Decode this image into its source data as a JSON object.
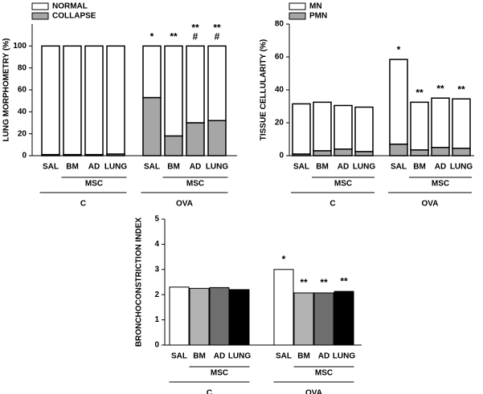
{
  "chart_data": [
    {
      "type": "stacked_bar",
      "y_label": "LUNG MORPHOMETRY (%)",
      "categories": [
        "SAL",
        "BM",
        "AD",
        "LUNG",
        "SAL",
        "BM",
        "AD",
        "LUNG"
      ],
      "subgroups": [
        "MSC",
        "MSC"
      ],
      "groups": [
        "C",
        "OVA"
      ],
      "series": [
        {
          "name": "NORMAL",
          "color": "#ffffff",
          "values": [
            99,
            99,
            99,
            98.5,
            47,
            82,
            70,
            68
          ],
          "annotations": [
            null,
            null,
            null,
            null,
            [
              "*"
            ],
            [
              "**"
            ],
            [
              "**",
              "#"
            ],
            [
              "**",
              "#"
            ]
          ]
        },
        {
          "name": "COLLAPSE",
          "color": "#a6a6a6",
          "values": [
            1,
            1,
            1,
            1.5,
            53,
            18,
            30,
            32
          ],
          "annotations": [
            null,
            null,
            null,
            null,
            [
              "*"
            ],
            [
              "**"
            ],
            [
              "**",
              "#"
            ],
            [
              "**",
              "#"
            ]
          ]
        }
      ],
      "ylim": [
        0,
        120
      ],
      "yticks": [
        0,
        20,
        40,
        60,
        80,
        100
      ]
    },
    {
      "type": "stacked_bar",
      "y_label": "TISSUE CELLULARITY (%)",
      "categories": [
        "SAL",
        "BM",
        "AD",
        "LUNG",
        "SAL",
        "BM",
        "AD",
        "LUNG"
      ],
      "subgroups": [
        "MSC",
        "MSC"
      ],
      "groups": [
        "C",
        "OVA"
      ],
      "series": [
        {
          "name": "MN",
          "color": "#ffffff",
          "values": [
            30.5,
            29.5,
            26.5,
            27,
            51.5,
            29,
            30,
            30
          ],
          "annotations": [
            null,
            null,
            null,
            null,
            [
              "*"
            ],
            [
              "**"
            ],
            [
              "**"
            ],
            [
              "**"
            ]
          ]
        },
        {
          "name": "PMN",
          "color": "#a6a6a6",
          "values": [
            1,
            3,
            4,
            2.5,
            7,
            3.5,
            5,
            4.5
          ],
          "annotations": [
            null,
            null,
            null,
            null,
            [
              "*"
            ],
            [
              "**"
            ],
            [
              "**"
            ],
            [
              "**"
            ]
          ]
        }
      ],
      "ylim": [
        0,
        80
      ],
      "yticks": [
        0,
        20,
        40,
        60,
        80
      ]
    },
    {
      "type": "bar",
      "y_label": "BRONCHOCONSTRICTION INDEX",
      "categories": [
        "SAL",
        "BM",
        "AD",
        "LUNG",
        "SAL",
        "BM",
        "AD",
        "LUNG"
      ],
      "subgroups": [
        "MSC",
        "MSC"
      ],
      "groups": [
        "C",
        "OVA"
      ],
      "values": [
        2.3,
        2.25,
        2.28,
        2.2,
        3.0,
        2.07,
        2.07,
        2.13
      ],
      "colors": [
        "#ffffff",
        "#b3b3b3",
        "#6e6e6e",
        "#000000",
        "#ffffff",
        "#b3b3b3",
        "#6e6e6e",
        "#000000"
      ],
      "annotations": [
        null,
        null,
        null,
        null,
        [
          "*"
        ],
        [
          "**"
        ],
        [
          "**"
        ],
        [
          "**"
        ]
      ],
      "ylim": [
        0,
        5
      ],
      "yticks": [
        0,
        1,
        2,
        3,
        4,
        5
      ]
    }
  ]
}
